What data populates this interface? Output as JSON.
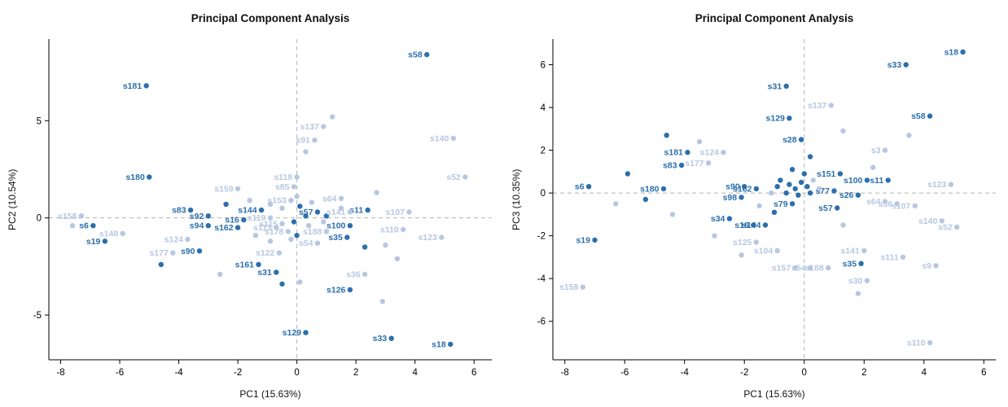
{
  "figure": {
    "background": "#ffffff"
  },
  "point_format": [
    "x",
    "y",
    "label",
    "group (d=dark, l=light)"
  ],
  "chart_data": [
    {
      "type": "scatter",
      "title": "Principal Component Analysis",
      "xlabel": "PC1 (15.63%)",
      "ylabel": "PC2 (10.54%)",
      "xlim": [
        -8.4,
        6.6
      ],
      "ylim": [
        -7.3,
        9.2
      ],
      "xticks": [
        -8,
        -6,
        -4,
        -2,
        0,
        2,
        4,
        6
      ],
      "yticks": [
        -5,
        0,
        5
      ],
      "grid": "dashed gray reference lines at x=0 and y=0",
      "legend": "none",
      "colors": {
        "dark": "#2b6fac",
        "light": "#b7c7e2"
      },
      "points": [
        [
          4.4,
          8.4,
          "s58",
          "d"
        ],
        [
          -5.1,
          6.8,
          "s181",
          "d"
        ],
        [
          -5.0,
          2.1,
          "s180",
          "d"
        ],
        [
          -3.6,
          0.4,
          "s83",
          "d"
        ],
        [
          -6.9,
          -0.4,
          "s6",
          "d"
        ],
        [
          -6.5,
          -1.2,
          "s19",
          "d"
        ],
        [
          -3.3,
          -1.7,
          "s90",
          "d"
        ],
        [
          -1.3,
          -2.4,
          "s161",
          "d"
        ],
        [
          -0.7,
          -2.8,
          "s31",
          "d"
        ],
        [
          -0.5,
          -3.4,
          "",
          "d"
        ],
        [
          1.8,
          -3.7,
          "s126",
          "d"
        ],
        [
          0.3,
          -5.9,
          "s129",
          "d"
        ],
        [
          3.2,
          -6.2,
          "s33",
          "d"
        ],
        [
          5.2,
          -6.5,
          "s18",
          "d"
        ],
        [
          2.4,
          0.4,
          "s11",
          "d"
        ],
        [
          1.8,
          -0.4,
          "s100",
          "d"
        ],
        [
          1.7,
          -1.0,
          "s35",
          "d"
        ],
        [
          -1.2,
          0.4,
          "s144",
          "d"
        ],
        [
          -2.0,
          -0.5,
          "s162",
          "d"
        ],
        [
          -1.8,
          -0.1,
          "s16",
          "d"
        ],
        [
          -3.0,
          0.1,
          "s92",
          "d"
        ],
        [
          -3.0,
          -0.4,
          "s94",
          "d"
        ],
        [
          0.7,
          0.3,
          "s57",
          "d"
        ],
        [
          2.3,
          -1.5,
          "",
          "d"
        ],
        [
          -2.4,
          0.7,
          "",
          "d"
        ],
        [
          -4.6,
          -2.4,
          "",
          "d"
        ],
        [
          0.1,
          0.6,
          "",
          "d"
        ],
        [
          -0.1,
          -0.2,
          "",
          "d"
        ],
        [
          0.3,
          0.1,
          "",
          "d"
        ],
        [
          0.0,
          -0.9,
          "",
          "d"
        ],
        [
          1.0,
          0.1,
          "",
          "d"
        ],
        [
          0.9,
          4.7,
          "s137",
          "l"
        ],
        [
          0.6,
          4.0,
          "s91",
          "l"
        ],
        [
          1.2,
          5.2,
          "",
          "l"
        ],
        [
          5.3,
          4.1,
          "s140",
          "l"
        ],
        [
          5.7,
          2.1,
          "s52",
          "l"
        ],
        [
          0.0,
          2.1,
          "s118",
          "l"
        ],
        [
          -0.1,
          1.6,
          "s85",
          "l"
        ],
        [
          -2.0,
          1.5,
          "s159",
          "l"
        ],
        [
          1.5,
          1.0,
          "s64",
          "l"
        ],
        [
          -0.2,
          0.9,
          "s153",
          "l"
        ],
        [
          1.8,
          0.3,
          "s141",
          "l"
        ],
        [
          3.8,
          0.3,
          "s107",
          "l"
        ],
        [
          3.6,
          -0.6,
          "s110",
          "l"
        ],
        [
          4.9,
          -1.0,
          "s123",
          "l"
        ],
        [
          1.0,
          -0.7,
          "s188",
          "l"
        ],
        [
          0.7,
          -1.3,
          "s54",
          "l"
        ],
        [
          -0.6,
          -1.8,
          "s122",
          "l"
        ],
        [
          2.3,
          -2.9,
          "s36",
          "l"
        ],
        [
          -7.3,
          0.1,
          "s158",
          "l"
        ],
        [
          -7.6,
          -0.4,
          "",
          "l"
        ],
        [
          -5.9,
          -0.8,
          "s148",
          "l"
        ],
        [
          -3.7,
          -1.1,
          "s124",
          "l"
        ],
        [
          -4.2,
          -1.8,
          "s177",
          "l"
        ],
        [
          0.3,
          3.4,
          "",
          "l"
        ],
        [
          2.7,
          1.3,
          "",
          "l"
        ],
        [
          3.0,
          -1.4,
          "",
          "l"
        ],
        [
          3.4,
          -2.1,
          "",
          "l"
        ],
        [
          2.9,
          -4.3,
          "",
          "l"
        ],
        [
          0.1,
          -3.3,
          "",
          "l"
        ],
        [
          -2.6,
          -2.9,
          "",
          "l"
        ],
        [
          -0.9,
          0.0,
          "s119",
          "l"
        ],
        [
          -0.5,
          -0.3,
          "s115",
          "l"
        ],
        [
          -0.7,
          -0.5,
          "s113",
          "l"
        ],
        [
          -0.3,
          -0.7,
          "s178",
          "l"
        ],
        [
          -0.5,
          0.5,
          "",
          "l"
        ],
        [
          0.0,
          1.1,
          "",
          "l"
        ],
        [
          0.5,
          0.8,
          "",
          "l"
        ],
        [
          -0.9,
          0.7,
          "",
          "l"
        ],
        [
          0.9,
          -0.2,
          "",
          "l"
        ],
        [
          -1.4,
          -0.9,
          "",
          "l"
        ],
        [
          -0.9,
          -1.2,
          "",
          "l"
        ],
        [
          -0.2,
          -1.1,
          "",
          "l"
        ],
        [
          0.4,
          -0.4,
          "",
          "l"
        ],
        [
          1.5,
          0.5,
          "",
          "l"
        ],
        [
          -1.6,
          0.9,
          "",
          "l"
        ]
      ]
    },
    {
      "type": "scatter",
      "title": "Principal Component Analysis",
      "xlabel": "PC1 (15.63%)",
      "ylabel": "PC3 (10.35%)",
      "xlim": [
        -8.4,
        6.4
      ],
      "ylim": [
        -7.8,
        7.2
      ],
      "xticks": [
        -8,
        -6,
        -4,
        -2,
        0,
        2,
        4,
        6
      ],
      "yticks": [
        -6,
        -4,
        -2,
        0,
        2,
        4,
        6
      ],
      "grid": "dashed gray reference lines at x=0 and y=0",
      "legend": "none",
      "colors": {
        "dark": "#2b6fac",
        "light": "#b7c7e2"
      },
      "points": [
        [
          5.3,
          6.6,
          "s18",
          "d"
        ],
        [
          3.4,
          6.0,
          "s33",
          "d"
        ],
        [
          -0.6,
          5.0,
          "s31",
          "d"
        ],
        [
          -0.5,
          3.5,
          "s129",
          "d"
        ],
        [
          4.2,
          3.6,
          "s58",
          "d"
        ],
        [
          -3.9,
          1.9,
          "s181",
          "d"
        ],
        [
          -4.1,
          1.3,
          "s83",
          "d"
        ],
        [
          -4.7,
          0.2,
          "s180",
          "d"
        ],
        [
          -7.2,
          0.3,
          "s6",
          "d"
        ],
        [
          -7.0,
          -2.2,
          "s19",
          "d"
        ],
        [
          -2.0,
          0.3,
          "s90",
          "d"
        ],
        [
          -2.1,
          -0.2,
          "s98",
          "d"
        ],
        [
          -2.5,
          -1.2,
          "s34",
          "d"
        ],
        [
          -1.7,
          -1.5,
          "s16",
          "d"
        ],
        [
          -1.3,
          -1.5,
          "s144",
          "d"
        ],
        [
          1.2,
          0.9,
          "s151",
          "d"
        ],
        [
          2.1,
          0.6,
          "s100",
          "d"
        ],
        [
          2.8,
          0.6,
          "s11",
          "d"
        ],
        [
          1.0,
          0.1,
          "s77",
          "d"
        ],
        [
          1.8,
          -0.1,
          "s26",
          "d"
        ],
        [
          1.9,
          -3.3,
          "s35",
          "d"
        ],
        [
          -0.4,
          -0.5,
          "s79",
          "d"
        ],
        [
          1.1,
          -0.7,
          "s57",
          "d"
        ],
        [
          -0.1,
          2.5,
          "s28",
          "d"
        ],
        [
          -1.6,
          0.2,
          "s162",
          "d"
        ],
        [
          -4.6,
          2.7,
          "",
          "d"
        ],
        [
          -5.9,
          0.9,
          "",
          "d"
        ],
        [
          -5.3,
          -0.3,
          "",
          "d"
        ],
        [
          -0.8,
          0.6,
          "",
          "d"
        ],
        [
          -0.5,
          0.4,
          "",
          "d"
        ],
        [
          -0.3,
          0.2,
          "",
          "d"
        ],
        [
          -0.1,
          0.5,
          "",
          "d"
        ],
        [
          0.1,
          0.3,
          "",
          "d"
        ],
        [
          -0.6,
          0.0,
          "",
          "d"
        ],
        [
          -0.2,
          -0.1,
          "",
          "d"
        ],
        [
          0.2,
          0.0,
          "",
          "d"
        ],
        [
          -0.9,
          0.3,
          "",
          "d"
        ],
        [
          0.0,
          0.9,
          "",
          "d"
        ],
        [
          -0.4,
          1.1,
          "",
          "d"
        ],
        [
          -1.0,
          -0.9,
          "",
          "d"
        ],
        [
          0.2,
          1.7,
          "",
          "d"
        ],
        [
          0.9,
          4.1,
          "s137",
          "l"
        ],
        [
          -2.7,
          1.9,
          "s124",
          "l"
        ],
        [
          -3.2,
          1.4,
          "s177",
          "l"
        ],
        [
          2.7,
          2.0,
          "s3",
          "l"
        ],
        [
          4.9,
          0.4,
          "s123",
          "l"
        ],
        [
          3.7,
          -0.6,
          "s107",
          "l"
        ],
        [
          4.6,
          -1.3,
          "s140",
          "l"
        ],
        [
          5.1,
          -1.6,
          "s52",
          "l"
        ],
        [
          2.0,
          -2.7,
          "s141",
          "l"
        ],
        [
          3.3,
          -3.0,
          "s111",
          "l"
        ],
        [
          4.4,
          -3.4,
          "s9",
          "l"
        ],
        [
          2.1,
          -4.1,
          "s30",
          "l"
        ],
        [
          -0.3,
          -3.5,
          "s157",
          "l"
        ],
        [
          0.2,
          -3.5,
          "s54",
          "l"
        ],
        [
          0.8,
          -3.5,
          "s188",
          "l"
        ],
        [
          -0.9,
          -2.7,
          "s104",
          "l"
        ],
        [
          -1.6,
          -2.3,
          "s125",
          "l"
        ],
        [
          -7.4,
          -4.4,
          "s158",
          "l"
        ],
        [
          4.2,
          -7.0,
          "s110",
          "l"
        ],
        [
          2.7,
          -0.4,
          "s64",
          "l"
        ],
        [
          3.1,
          -0.5,
          "s36",
          "l"
        ],
        [
          -3.5,
          2.4,
          "",
          "l"
        ],
        [
          -6.3,
          -0.5,
          "",
          "l"
        ],
        [
          -4.4,
          -1.0,
          "",
          "l"
        ],
        [
          -3.0,
          -2.0,
          "",
          "l"
        ],
        [
          -2.1,
          -2.9,
          "",
          "l"
        ],
        [
          1.3,
          2.9,
          "",
          "l"
        ],
        [
          1.3,
          -1.5,
          "",
          "l"
        ],
        [
          1.8,
          -4.7,
          "",
          "l"
        ],
        [
          0.5,
          0.2,
          "",
          "l"
        ],
        [
          0.3,
          0.6,
          "",
          "l"
        ],
        [
          -1.1,
          0.0,
          "",
          "l"
        ],
        [
          -1.5,
          -0.6,
          "",
          "l"
        ],
        [
          2.3,
          1.2,
          "",
          "l"
        ],
        [
          3.5,
          2.7,
          "",
          "l"
        ]
      ]
    }
  ]
}
